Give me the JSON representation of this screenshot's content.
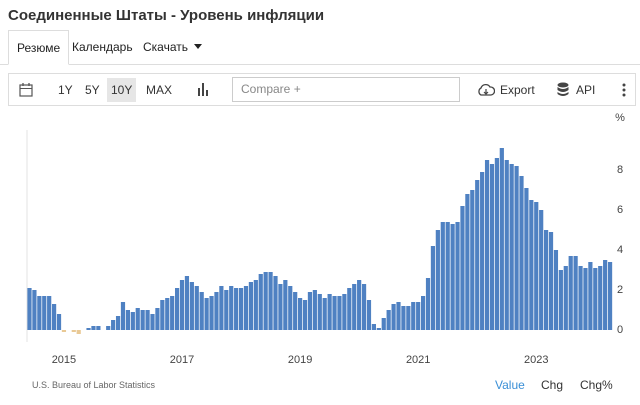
{
  "header": {
    "title": "Соединенные Штаты - Уровень инфляции"
  },
  "tabs": [
    "Резюме",
    "Календарь",
    "Скачать"
  ],
  "active_tab": 0,
  "toolbar": {
    "ranges": [
      "1Y",
      "5Y",
      "10Y",
      "MAX"
    ],
    "active_range": 2,
    "compare": "Compare +",
    "export": "Export",
    "api": "API"
  },
  "footer": {
    "source": "U.S. Bureau of Labor Statistics",
    "views": [
      "Value",
      "Chg",
      "Chg%"
    ],
    "active_view": 0
  },
  "chart_data": {
    "type": "bar",
    "ylabel": "%",
    "categories": [
      null,
      null,
      null,
      null,
      null,
      null,
      null,
      "2015",
      null,
      null,
      null,
      null,
      null,
      null,
      null,
      null,
      null,
      null,
      null,
      null,
      null,
      null,
      null,
      null,
      null,
      null,
      null,
      null,
      null,
      null,
      null,
      "2017",
      null,
      null,
      null,
      null,
      null,
      null,
      null,
      null,
      null,
      null,
      null,
      null,
      null,
      null,
      null,
      null,
      null,
      null,
      null,
      null,
      null,
      null,
      null,
      "2019",
      null,
      null,
      null,
      null,
      null,
      null,
      null,
      null,
      null,
      null,
      null,
      null,
      null,
      null,
      null,
      null,
      null,
      null,
      null,
      null,
      null,
      null,
      null,
      "2021",
      null,
      null,
      null,
      null,
      null,
      null,
      null,
      null,
      null,
      null,
      null,
      null,
      null,
      null,
      null,
      null,
      null,
      null,
      null,
      null,
      null,
      null,
      null,
      "2023",
      null,
      null,
      null,
      null,
      null,
      null,
      null,
      null,
      null,
      null,
      null,
      null,
      null,
      null,
      null
    ],
    "values": [
      2.1,
      2.0,
      1.7,
      1.7,
      1.7,
      1.3,
      0.8,
      -0.1,
      0.0,
      -0.1,
      -0.2,
      0.0,
      0.1,
      0.2,
      0.2,
      0.0,
      0.2,
      0.5,
      0.7,
      1.4,
      1.0,
      0.9,
      1.1,
      1.0,
      1.0,
      0.8,
      1.1,
      1.5,
      1.6,
      1.7,
      2.1,
      2.5,
      2.7,
      2.4,
      2.2,
      1.9,
      1.6,
      1.7,
      1.9,
      2.2,
      2.0,
      2.2,
      2.1,
      2.1,
      2.2,
      2.4,
      2.5,
      2.8,
      2.9,
      2.9,
      2.7,
      2.3,
      2.5,
      2.2,
      1.9,
      1.6,
      1.5,
      1.9,
      2.0,
      1.8,
      1.6,
      1.8,
      1.7,
      1.7,
      1.8,
      2.1,
      2.3,
      2.5,
      2.3,
      1.5,
      0.3,
      0.1,
      0.6,
      1.0,
      1.3,
      1.4,
      1.2,
      1.2,
      1.4,
      1.4,
      1.7,
      2.6,
      4.2,
      5.0,
      5.4,
      5.4,
      5.3,
      5.4,
      6.2,
      6.8,
      7.0,
      7.5,
      7.9,
      8.5,
      8.3,
      8.6,
      9.1,
      8.5,
      8.3,
      8.2,
      7.7,
      7.1,
      6.5,
      6.4,
      6.0,
      5.0,
      4.9,
      4.0,
      3.0,
      3.2,
      3.7,
      3.7,
      3.2,
      3.1,
      3.4,
      3.1,
      3.2,
      3.5,
      3.4
    ],
    "color": "#4f81c2",
    "negative_color": "#e9c995",
    "ylim": [
      -0.6,
      9.4
    ],
    "yticks": [
      0,
      2,
      4,
      6,
      8
    ],
    "grid": false
  }
}
